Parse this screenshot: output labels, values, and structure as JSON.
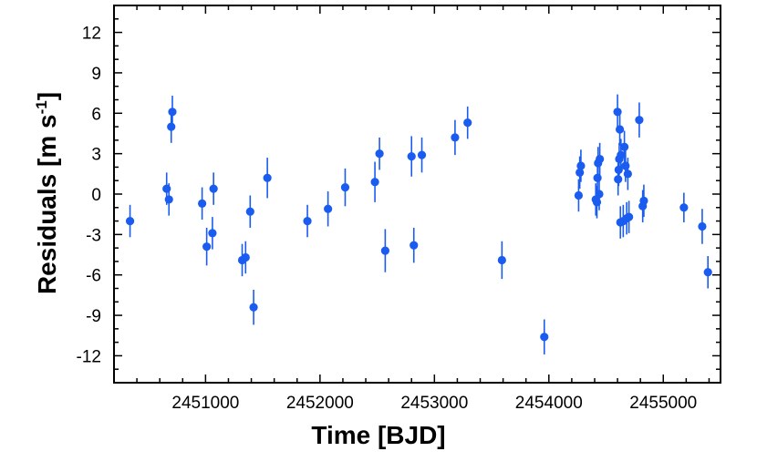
{
  "chart_data": {
    "type": "scatter",
    "xlabel": "Time [BJD]",
    "ylabel": {
      "base": "Residuals [m s",
      "sup": "-1",
      "close": "]"
    },
    "xlim": [
      2450200,
      2455500
    ],
    "ylim": [
      -14,
      14
    ],
    "xticks": [
      2451000,
      2452000,
      2453000,
      2454000,
      2455000
    ],
    "xtick_labels": [
      "2451000",
      "2452000",
      "2453000",
      "2454000",
      "2455000"
    ],
    "yticks": [
      12,
      9,
      6,
      3,
      0,
      -3,
      -6,
      -9,
      -12
    ],
    "ytick_labels": [
      "12",
      "9",
      "6",
      "3",
      "0",
      "-3",
      "-6",
      "-9",
      "-12"
    ],
    "grid": false,
    "colors": {
      "marker": "#1a5cf0",
      "axis": "#000000"
    },
    "series": [
      {
        "points": [
          {
            "x": 2450340,
            "y": -2.0,
            "err": 1.2
          },
          {
            "x": 2450660,
            "y": 0.4,
            "err": 1.2
          },
          {
            "x": 2450680,
            "y": -0.4,
            "err": 1.2
          },
          {
            "x": 2450700,
            "y": 5.0,
            "err": 1.2
          },
          {
            "x": 2450710,
            "y": 6.1,
            "err": 1.2
          },
          {
            "x": 2450970,
            "y": -0.7,
            "err": 1.2
          },
          {
            "x": 2451010,
            "y": -3.9,
            "err": 1.4
          },
          {
            "x": 2451060,
            "y": -2.9,
            "err": 1.2
          },
          {
            "x": 2451070,
            "y": 0.4,
            "err": 1.2
          },
          {
            "x": 2451320,
            "y": -4.9,
            "err": 1.2
          },
          {
            "x": 2451350,
            "y": -4.7,
            "err": 1.2
          },
          {
            "x": 2451390,
            "y": -1.3,
            "err": 1.2
          },
          {
            "x": 2451420,
            "y": -8.4,
            "err": 1.3
          },
          {
            "x": 2451540,
            "y": 1.2,
            "err": 1.5
          },
          {
            "x": 2451890,
            "y": -2.0,
            "err": 1.2
          },
          {
            "x": 2452070,
            "y": -1.1,
            "err": 1.3
          },
          {
            "x": 2452220,
            "y": 0.5,
            "err": 1.4
          },
          {
            "x": 2452480,
            "y": 0.9,
            "err": 1.5
          },
          {
            "x": 2452520,
            "y": 3.0,
            "err": 1.2
          },
          {
            "x": 2452570,
            "y": -4.2,
            "err": 1.6
          },
          {
            "x": 2452800,
            "y": 2.8,
            "err": 1.5
          },
          {
            "x": 2452820,
            "y": -3.8,
            "err": 1.3
          },
          {
            "x": 2452890,
            "y": 2.9,
            "err": 1.3
          },
          {
            "x": 2453180,
            "y": 4.2,
            "err": 1.3
          },
          {
            "x": 2453290,
            "y": 5.3,
            "err": 1.2
          },
          {
            "x": 2453590,
            "y": -4.9,
            "err": 1.4
          },
          {
            "x": 2453960,
            "y": -10.6,
            "err": 1.3
          },
          {
            "x": 2454260,
            "y": -0.1,
            "err": 1.2
          },
          {
            "x": 2454270,
            "y": 1.6,
            "err": 1.2
          },
          {
            "x": 2454280,
            "y": 2.1,
            "err": 1.2
          },
          {
            "x": 2454410,
            "y": -0.4,
            "err": 1.2
          },
          {
            "x": 2454420,
            "y": -0.6,
            "err": 1.2
          },
          {
            "x": 2454425,
            "y": 1.2,
            "err": 1.2
          },
          {
            "x": 2454430,
            "y": 2.3,
            "err": 1.2
          },
          {
            "x": 2454440,
            "y": 0.0,
            "err": 1.2
          },
          {
            "x": 2454445,
            "y": 2.6,
            "err": 1.2
          },
          {
            "x": 2454600,
            "y": 6.1,
            "err": 1.3
          },
          {
            "x": 2454605,
            "y": 1.1,
            "err": 1.2
          },
          {
            "x": 2454610,
            "y": 1.8,
            "err": 1.2
          },
          {
            "x": 2454615,
            "y": 2.6,
            "err": 1.2
          },
          {
            "x": 2454620,
            "y": 4.8,
            "err": 1.2
          },
          {
            "x": 2454625,
            "y": -2.1,
            "err": 1.2
          },
          {
            "x": 2454630,
            "y": 2.9,
            "err": 1.2
          },
          {
            "x": 2454650,
            "y": -2.0,
            "err": 1.2
          },
          {
            "x": 2454660,
            "y": 3.5,
            "err": 1.2
          },
          {
            "x": 2454670,
            "y": 2.1,
            "err": 1.2
          },
          {
            "x": 2454680,
            "y": -1.8,
            "err": 1.2
          },
          {
            "x": 2454690,
            "y": 1.5,
            "err": 1.2
          },
          {
            "x": 2454700,
            "y": -1.7,
            "err": 1.2
          },
          {
            "x": 2454790,
            "y": 5.5,
            "err": 1.3
          },
          {
            "x": 2454820,
            "y": -0.9,
            "err": 1.2
          },
          {
            "x": 2454830,
            "y": -0.5,
            "err": 1.2
          },
          {
            "x": 2455180,
            "y": -1.0,
            "err": 1.1
          },
          {
            "x": 2455340,
            "y": -2.4,
            "err": 1.3
          },
          {
            "x": 2455390,
            "y": -5.8,
            "err": 1.2
          }
        ]
      }
    ]
  }
}
